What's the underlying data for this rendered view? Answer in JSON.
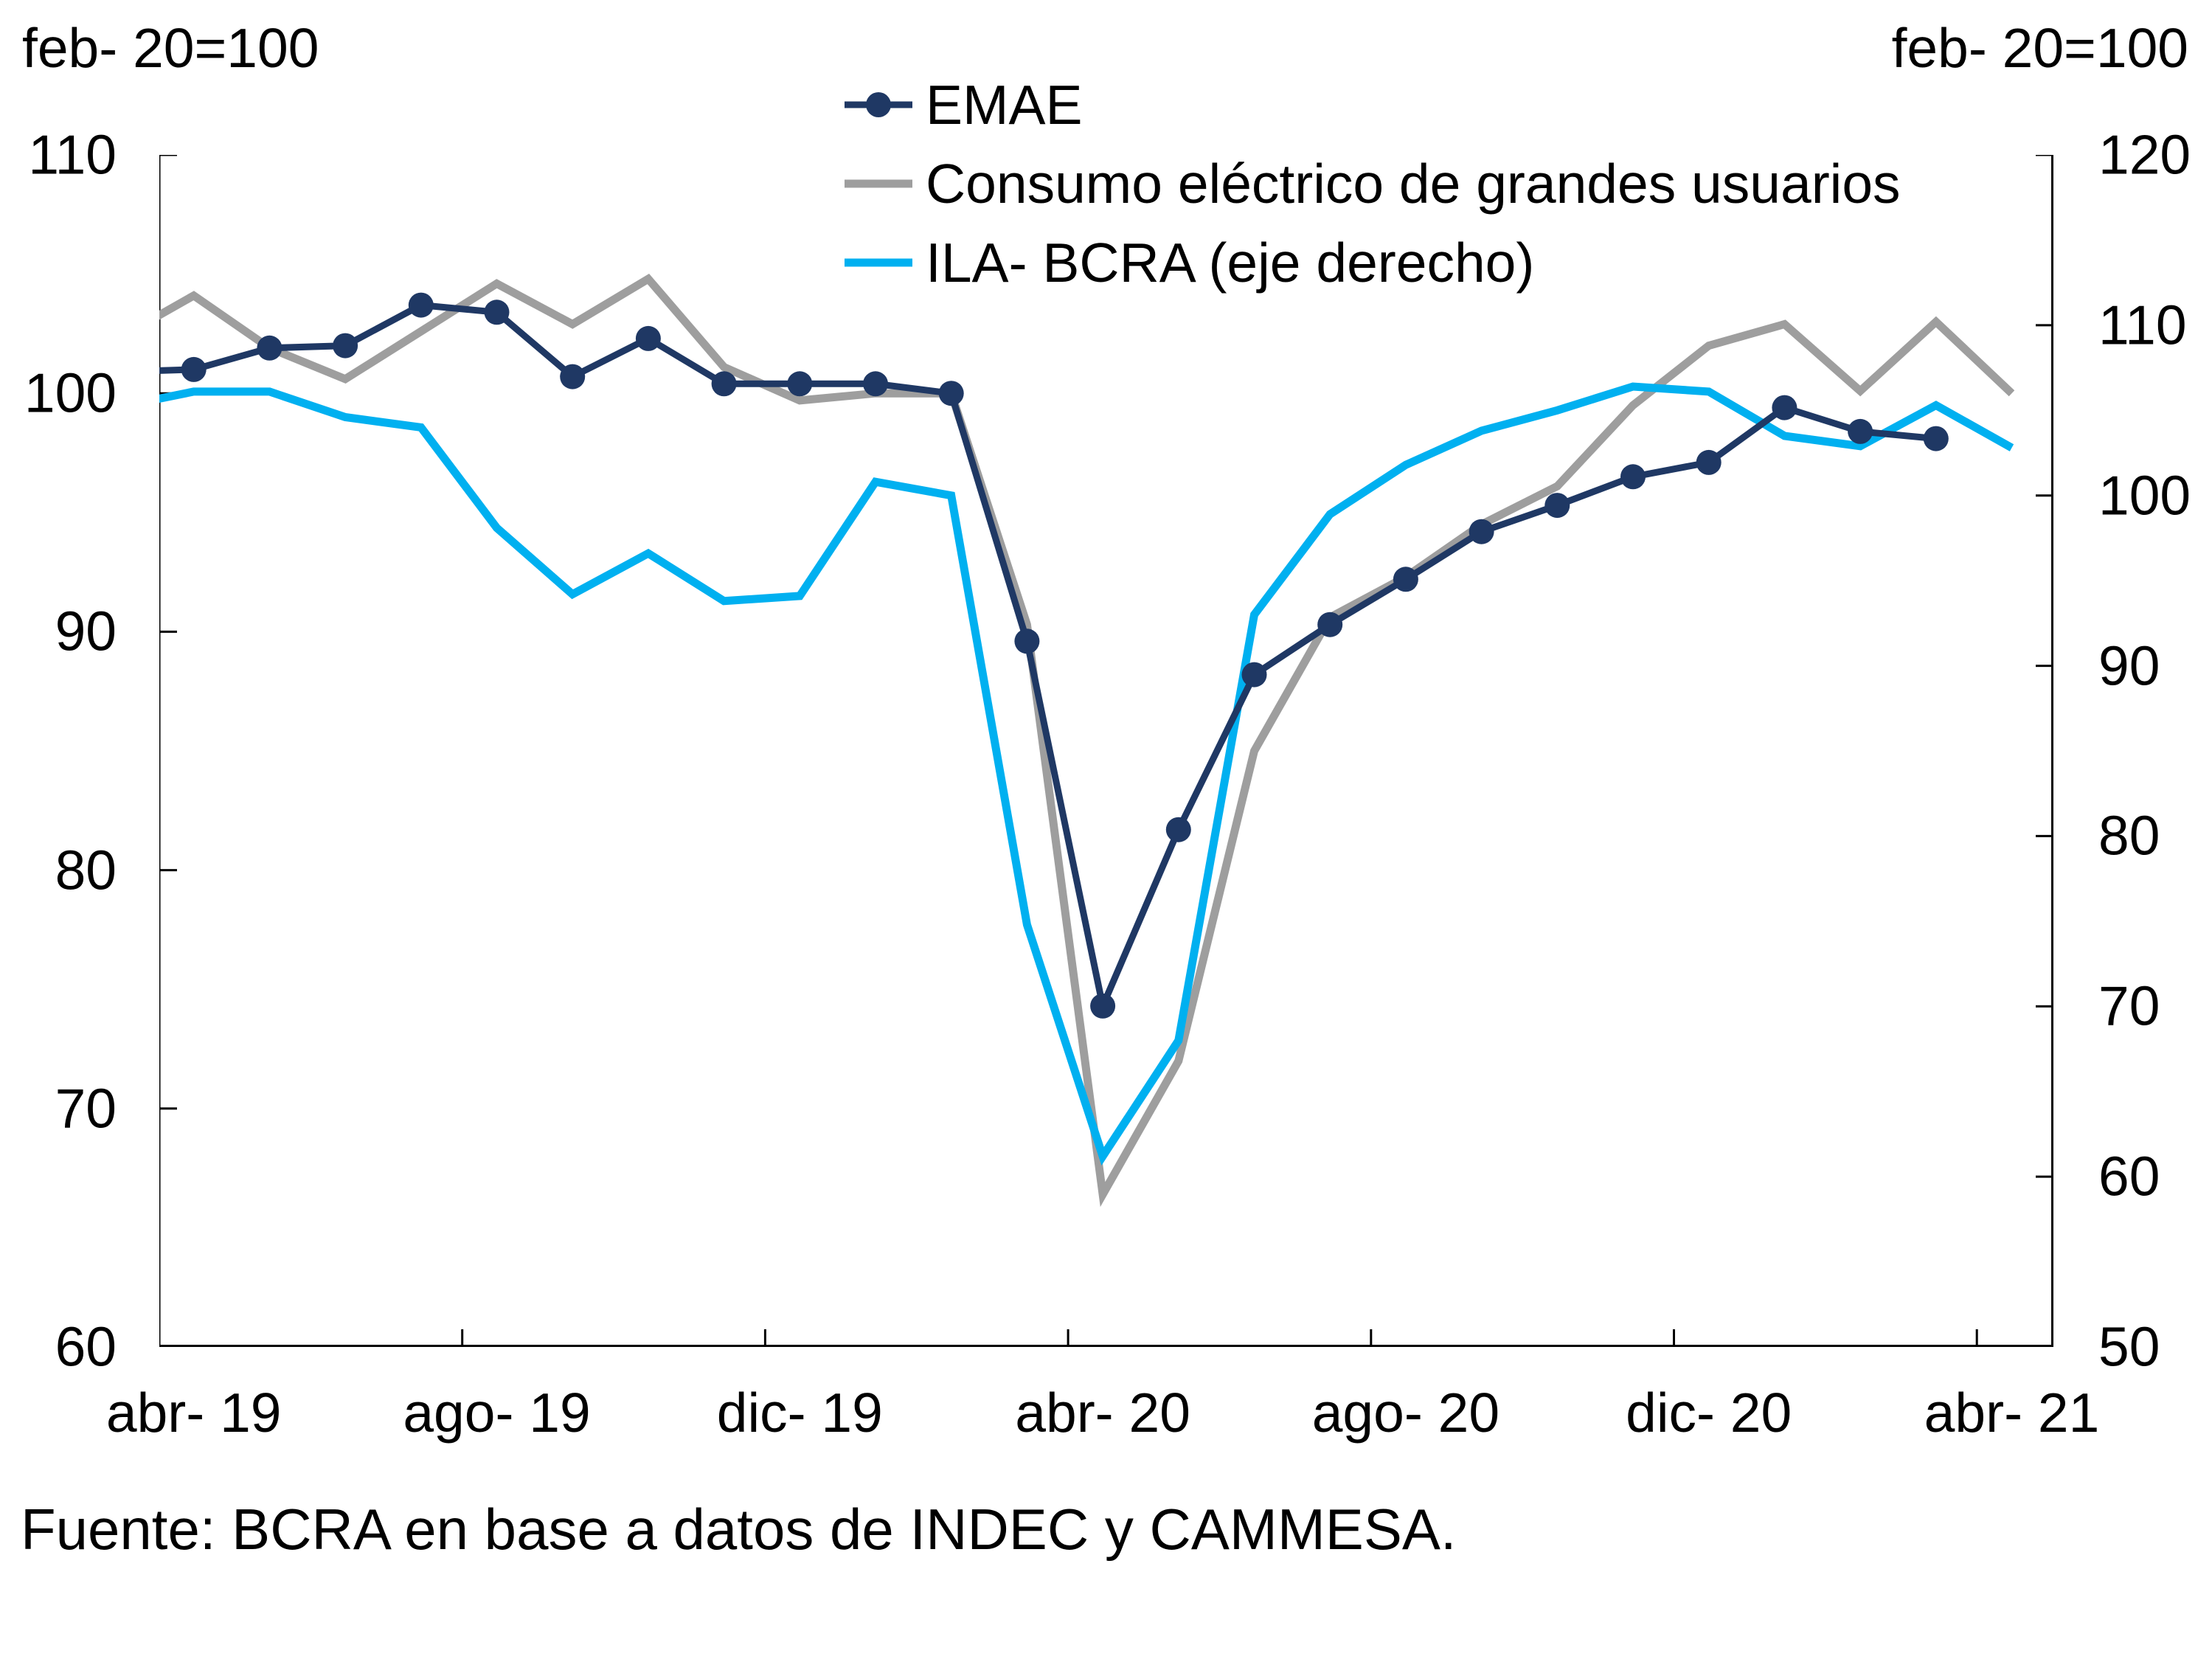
{
  "header": {
    "left_axis_note": "feb- 20=100",
    "right_axis_note": "feb- 20=100"
  },
  "footer": {
    "source": "Fuente: BCRA en base a datos de INDEC y CAMMESA."
  },
  "colors": {
    "emae": "#1F3864",
    "consumo": "#9E9E9E",
    "ila": "#00B0F0",
    "axis": "#000000"
  },
  "chart_data": {
    "type": "line",
    "title": "",
    "x_months": [
      "mar-19",
      "abr-19",
      "may-19",
      "jun-19",
      "jul-19",
      "ago-19",
      "sep-19",
      "oct-19",
      "nov-19",
      "dic-19",
      "ene-20",
      "feb-20",
      "mar-20",
      "abr-20",
      "may-20",
      "jun-20",
      "jul-20",
      "ago-20",
      "sep-20",
      "oct-20",
      "nov-20",
      "dic-20",
      "ene-21",
      "feb-21",
      "mar-21",
      "abr-21"
    ],
    "x_tick_labels": [
      {
        "label": "abr- 19",
        "month_index": 1
      },
      {
        "label": "ago- 19",
        "month_index": 5
      },
      {
        "label": "dic- 19",
        "month_index": 9
      },
      {
        "label": "abr- 20",
        "month_index": 13
      },
      {
        "label": "ago- 20",
        "month_index": 17
      },
      {
        "label": "dic- 20",
        "month_index": 21
      },
      {
        "label": "abr- 21",
        "month_index": 25
      }
    ],
    "left_axis": {
      "min": 60,
      "max": 110,
      "step": 10,
      "tick_labels": [
        "110",
        "100",
        "90",
        "80",
        "70",
        "60"
      ]
    },
    "right_axis": {
      "min": 50,
      "max": 120,
      "step": 10,
      "tick_labels": [
        "120",
        "110",
        "100",
        "90",
        "80",
        "70",
        "60",
        "50"
      ]
    },
    "grid": "off",
    "legend_position": "top-center",
    "series": [
      {
        "name": "EMAE",
        "axis": "left",
        "color_key": "emae",
        "marker": "circle",
        "values": [
          100.9,
          101.0,
          101.9,
          102.0,
          103.7,
          103.4,
          100.7,
          102.3,
          100.4,
          100.4,
          100.4,
          100.0,
          89.6,
          74.3,
          81.7,
          88.2,
          90.3,
          92.2,
          94.2,
          95.3,
          96.5,
          97.1,
          99.4,
          98.4,
          98.1,
          null
        ]
      },
      {
        "name": "Consumo eléctrico de grandes usuarios",
        "axis": "left",
        "color_key": "consumo",
        "marker": "none",
        "values": [
          102.3,
          104.1,
          101.9,
          100.6,
          102.6,
          104.6,
          102.9,
          104.8,
          101.1,
          99.7,
          100.0,
          100.0,
          90.3,
          66.4,
          72.0,
          85.0,
          90.6,
          92.3,
          94.5,
          96.1,
          99.5,
          102.0,
          102.9,
          100.1,
          103.0,
          100.0
        ]
      },
      {
        "name": "ILA- BCRA (eje derecho)",
        "axis": "right",
        "color_key": "ila",
        "marker": "none",
        "values": [
          105.2,
          106.1,
          106.1,
          104.6,
          104.0,
          98.1,
          94.2,
          96.6,
          93.8,
          94.1,
          100.8,
          100.0,
          74.8,
          61.2,
          68.0,
          93.0,
          98.9,
          101.8,
          103.8,
          105.0,
          106.4,
          106.1,
          103.5,
          102.9,
          105.3,
          102.8
        ]
      }
    ]
  }
}
